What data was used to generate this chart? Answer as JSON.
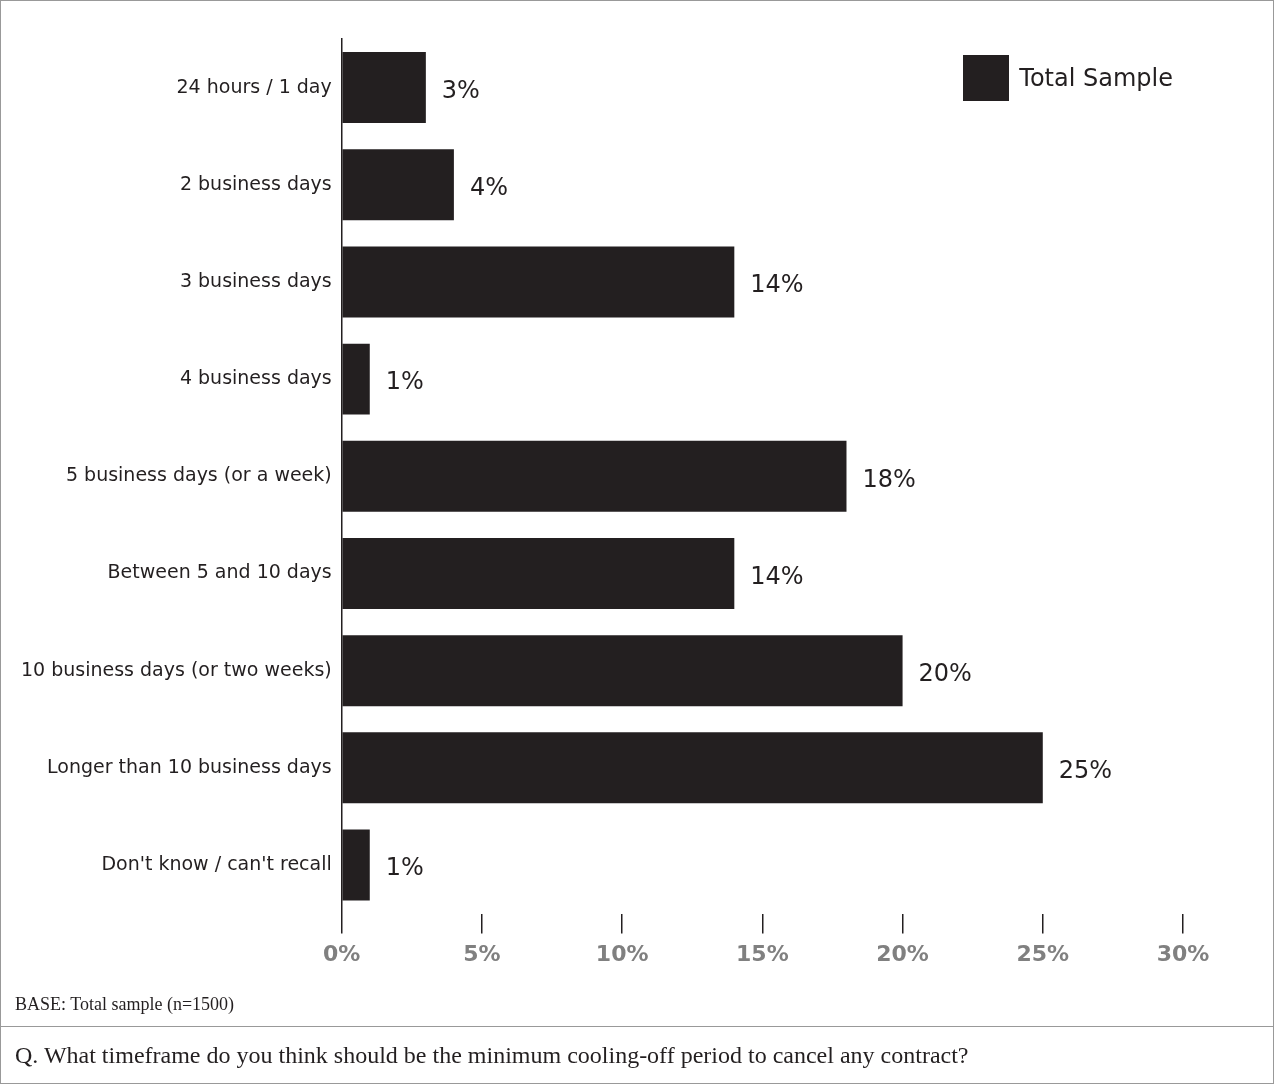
{
  "chart_data": {
    "type": "bar",
    "orientation": "horizontal",
    "categories": [
      "24 hours / 1 day",
      "2 business days",
      "3 business days",
      "4 business days",
      "5 business days (or a week)",
      "Between 5 and 10 days",
      "10 business days (or two weeks)",
      "Longer than 10 business days",
      "Don't know / can't recall"
    ],
    "series": [
      {
        "name": "Total Sample",
        "color": "#231f20",
        "values": [
          3,
          4,
          14,
          1,
          18,
          14,
          20,
          25,
          1
        ],
        "value_labels": [
          "3%",
          "4%",
          "14%",
          "1%",
          "18%",
          "14%",
          "20%",
          "25%",
          "1%"
        ]
      }
    ],
    "xlim": [
      0,
      30
    ],
    "xticks": [
      {
        "value": 0,
        "label": "0%"
      },
      {
        "value": 5,
        "label": "5%"
      },
      {
        "value": 10,
        "label": "10%"
      },
      {
        "value": 15,
        "label": "15%"
      },
      {
        "value": 20,
        "label": "20%"
      },
      {
        "value": 25,
        "label": "25%"
      },
      {
        "value": 30,
        "label": "30%"
      }
    ],
    "grid": false,
    "legend": "top right",
    "annotations": [
      "BASE: Total sample (n=1500)",
      "Q. What timeframe do you think should be the minimum cooling-off period to cancel any contract?"
    ]
  }
}
